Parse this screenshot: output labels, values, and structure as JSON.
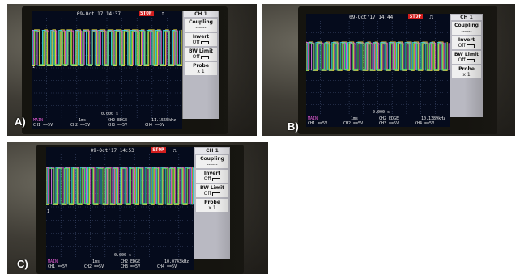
{
  "panels": [
    {
      "label": "A)",
      "timestamp": "09-Oct'17 14:37",
      "run_state": "STOP",
      "time_offset": "0.000 s",
      "main_label": "MAIN",
      "timebase": "1ms",
      "trigger": "CH2 EDGE",
      "frequency": "11.1565kHz",
      "channels": [
        "CH1 ==5V",
        "CH2 ==5V",
        "CH3 ==5V",
        "CH4 ==5V"
      ],
      "ground_marker": "1"
    },
    {
      "label": "B)",
      "timestamp": "09-Oct'17 14:44",
      "run_state": "STOP",
      "time_offset": "0.000 s",
      "main_label": "MAIN",
      "timebase": "1ms",
      "trigger": "CH2 EDGE",
      "frequency": "10.1389kHz",
      "channels": [
        "CH1 ==5V",
        "CH2 ==5V",
        "CH3 ==5V",
        "CH4 ==5V"
      ],
      "ground_marker": "1"
    },
    {
      "label": "C)",
      "timestamp": "09-Oct'17 14:53",
      "run_state": "STOP",
      "time_offset": "0.000 s",
      "main_label": "MAIN",
      "timebase": "1ms",
      "trigger": "CH2 EDGE",
      "frequency": "10.0743kHz",
      "channels": [
        "CH1 ==5V",
        "CH2 ==5V",
        "CH3 ==5V",
        "CH4 ==5V"
      ],
      "ground_marker": "1"
    }
  ],
  "menu": {
    "title": "CH 1",
    "coupling_label": "Coupling",
    "coupling_value": "------",
    "invert_label": "Invert",
    "invert_value": "Off",
    "bwlimit_label": "BW Limit",
    "bwlimit_value": "Off",
    "probe_label": "Probe",
    "probe_value": "x 1"
  },
  "colors": {
    "trace_ch1": "#f2e640",
    "trace_ch2": "#3fd6e6",
    "trace_ch3": "#e05ad0",
    "trace_ch4": "#5fe05f",
    "screen_bg": "#050b1c",
    "grid": "#3d4a6b"
  }
}
